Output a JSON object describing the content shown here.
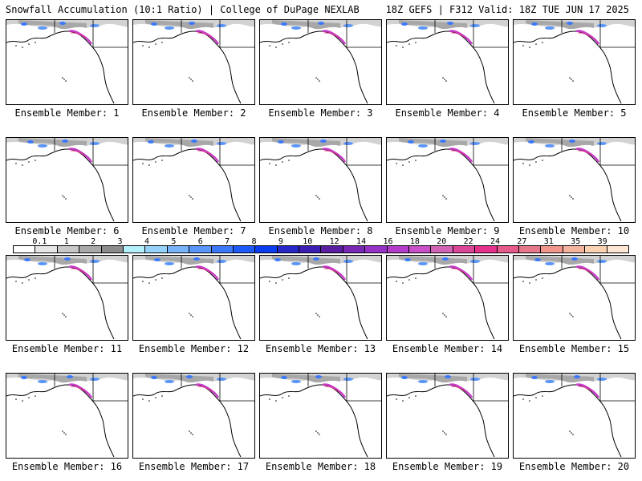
{
  "header": {
    "title_left": "Snowfall Accumulation (10:1 Ratio) | College of DuPage NEXLAB",
    "title_right": "18Z GEFS | F312 Valid: 18Z TUE JUN 17 2025"
  },
  "panels": [
    {
      "label": "Ensemble Member: 1"
    },
    {
      "label": "Ensemble Member: 2"
    },
    {
      "label": "Ensemble Member: 3"
    },
    {
      "label": "Ensemble Member: 4"
    },
    {
      "label": "Ensemble Member: 5"
    },
    {
      "label": "Ensemble Member: 6"
    },
    {
      "label": "Ensemble Member: 7"
    },
    {
      "label": "Ensemble Member: 8"
    },
    {
      "label": "Ensemble Member: 9"
    },
    {
      "label": "Ensemble Member: 10"
    },
    {
      "label": "Ensemble Member: 11"
    },
    {
      "label": "Ensemble Member: 12"
    },
    {
      "label": "Ensemble Member: 13"
    },
    {
      "label": "Ensemble Member: 14"
    },
    {
      "label": "Ensemble Member: 15"
    },
    {
      "label": "Ensemble Member: 16"
    },
    {
      "label": "Ensemble Member: 17"
    },
    {
      "label": "Ensemble Member: 18"
    },
    {
      "label": "Ensemble Member: 19"
    },
    {
      "label": "Ensemble Member: 20"
    }
  ],
  "legend": {
    "ticks": [
      "0.1",
      "1",
      "2",
      "3",
      "4",
      "5",
      "6",
      "7",
      "8",
      "9",
      "10",
      "12",
      "14",
      "16",
      "18",
      "20",
      "22",
      "24",
      "27",
      "31",
      "35",
      "39"
    ],
    "colors": [
      "#ffffff",
      "#e6e6e6",
      "#c8c8c8",
      "#aaaaaa",
      "#8c8c8c",
      "#b4f0fa",
      "#96d2fa",
      "#78b4fa",
      "#5a96fa",
      "#3c78fa",
      "#1e5afa",
      "#0a3cf0",
      "#2828c8",
      "#3c1eb4",
      "#5a1ea0",
      "#7828b4",
      "#9632c8",
      "#b43cc8",
      "#c850c8",
      "#d264b4",
      "#dc4696",
      "#e6328c",
      "#e65a8c",
      "#e6788c",
      "#f0968c",
      "#f5b4a0",
      "#fad2b4",
      "#fde6d2"
    ]
  }
}
